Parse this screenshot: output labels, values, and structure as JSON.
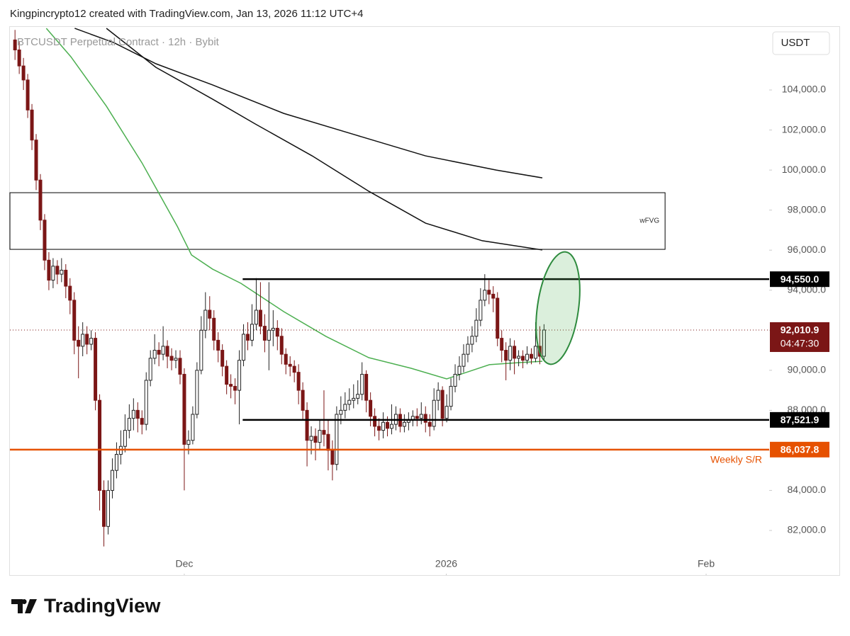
{
  "header": "Kingpincrypto12 created with TradingView.com, Jan 13, 2026 11:12 UTC+4",
  "footer": {
    "brand": "TradingView"
  },
  "chart_data": {
    "type": "candlestick",
    "title": "BTCUSDT Perpetual Contract · 12h · Bybit",
    "currency": "USDT",
    "up_color": "#ffffff",
    "down_color": "#7b1616",
    "wick_color": "#222222",
    "xlim": [
      -1.2,
      178.2
    ],
    "xticks": [
      {
        "value": 40.0,
        "label": "Dec"
      },
      {
        "value": 101.9,
        "label": "2026"
      },
      {
        "value": 163.3,
        "label": "Feb"
      }
    ],
    "ylim": [
      79770,
      107150
    ],
    "yticks": [
      {
        "value": 82000,
        "label": "82,000.0"
      },
      {
        "value": 84000,
        "label": "84,000.0"
      },
      {
        "value": 86000,
        "label": "86,000.0"
      },
      {
        "value": 88000,
        "label": "88,000.0"
      },
      {
        "value": 90000,
        "label": "90,000.0"
      },
      {
        "value": 92000,
        "label": "92,000.0"
      },
      {
        "value": 94000,
        "label": "94,000.0"
      },
      {
        "value": 96000,
        "label": "96,000.0"
      },
      {
        "value": 98000,
        "label": "98,000.0"
      },
      {
        "value": 100000,
        "label": "100,000.0"
      },
      {
        "value": 102000,
        "label": "102,000.0"
      },
      {
        "value": 104000,
        "label": "104,000.0"
      }
    ],
    "open": [
      106500,
      106000,
      105200,
      104500,
      103000,
      101500,
      99500,
      97500,
      95500,
      94500,
      95200,
      94800,
      95000,
      94200,
      93500,
      91500,
      91200,
      91800,
      91300,
      91600,
      88500,
      84000,
      82200,
      84000,
      85000,
      85800,
      86200,
      87000,
      87600,
      88000,
      87600,
      87300,
      89500,
      90600,
      91000,
      90800,
      91200,
      90700,
      90500,
      90600,
      89800,
      86300,
      86500,
      87800,
      90000,
      92000,
      93000,
      92600,
      91500,
      91000,
      90200,
      89300,
      89200,
      89000,
      90500,
      91800,
      91500,
      92300,
      93000,
      92200,
      91500,
      92000,
      92100,
      91700,
      90800,
      90300,
      90200,
      89900,
      89000,
      88000,
      86500,
      86700,
      86400,
      87000,
      86800,
      86000,
      85300,
      87800,
      88000,
      88300,
      88500,
      88600,
      88800,
      89800,
      88500,
      87700,
      87200,
      87000,
      87400,
      87100,
      87300,
      87800,
      87200,
      87400,
      87500,
      87700,
      87600,
      87800,
      87400,
      87200,
      88500,
      89000,
      87600,
      88200,
      89200,
      89800,
      90200,
      90800,
      91300,
      91700,
      92500,
      93500,
      94000,
      93800,
      93600,
      91600,
      91000,
      90500,
      91200,
      90600,
      90700,
      90500,
      90800,
      90600,
      91200,
      90700
    ],
    "high": [
      107000,
      106400,
      105600,
      104800,
      103300,
      101800,
      99800,
      97800,
      95900,
      95600,
      95500,
      95600,
      95300,
      94600,
      93900,
      92200,
      92400,
      92200,
      92000,
      91900,
      88800,
      84500,
      84500,
      85600,
      86400,
      87000,
      87800,
      88300,
      88600,
      88400,
      88000,
      89900,
      91000,
      91800,
      91400,
      92200,
      91500,
      91100,
      91000,
      91000,
      90100,
      87000,
      88200,
      90400,
      92700,
      93900,
      93700,
      93000,
      91900,
      91300,
      90500,
      89800,
      89600,
      91000,
      92300,
      92400,
      93300,
      94600,
      94400,
      92800,
      94400,
      93000,
      92500,
      92100,
      91100,
      90700,
      90500,
      90300,
      89400,
      88400,
      87200,
      87100,
      87500,
      89000,
      87500,
      86500,
      88200,
      88700,
      88900,
      89100,
      89300,
      89500,
      90400,
      90000,
      88900,
      88100,
      87600,
      87900,
      87700,
      88300,
      88200,
      88100,
      87800,
      87900,
      88000,
      88100,
      88400,
      88200,
      87800,
      89100,
      89400,
      89200,
      88800,
      89600,
      90300,
      90700,
      91300,
      91700,
      92200,
      93100,
      94100,
      94800,
      94500,
      94200,
      93900,
      92000,
      91400,
      91600,
      91500,
      91000,
      91000,
      91200,
      91100,
      92400,
      92200,
      92300
    ],
    "low": [
      105500,
      104800,
      104000,
      102600,
      101000,
      99000,
      97000,
      95000,
      94000,
      94100,
      94300,
      94400,
      93600,
      92800,
      90800,
      89600,
      90700,
      90800,
      91000,
      88000,
      83000,
      81200,
      81800,
      83600,
      84600,
      85300,
      85900,
      86600,
      87000,
      86900,
      86800,
      87000,
      89200,
      90300,
      90200,
      90500,
      90100,
      90000,
      90100,
      89300,
      84000,
      85800,
      86300,
      87600,
      89800,
      91600,
      92000,
      91000,
      90400,
      89700,
      88800,
      88600,
      88300,
      87300,
      90200,
      91000,
      91200,
      92000,
      91800,
      90900,
      90000,
      91200,
      91000,
      90300,
      89800,
      89700,
      89400,
      88300,
      87500,
      85200,
      85800,
      85500,
      86000,
      86200,
      85000,
      84500,
      85000,
      87300,
      87600,
      88000,
      88100,
      88300,
      88500,
      87900,
      87200,
      86700,
      86500,
      86600,
      86700,
      86800,
      87000,
      86900,
      86900,
      87000,
      87200,
      87200,
      87300,
      86900,
      86700,
      87000,
      88000,
      87200,
      87400,
      88000,
      88900,
      89500,
      89900,
      90400,
      90900,
      91400,
      92200,
      93200,
      93300,
      92900,
      91200,
      90400,
      89500,
      90000,
      89800,
      90200,
      90100,
      90300,
      90300,
      90400,
      90300,
      90500
    ],
    "close": [
      106000,
      105200,
      104500,
      103000,
      101500,
      99500,
      97500,
      95500,
      94500,
      95200,
      94800,
      95000,
      94200,
      93500,
      91500,
      91200,
      91800,
      91300,
      91600,
      88500,
      84000,
      82200,
      84000,
      85000,
      85800,
      86200,
      87000,
      87600,
      88000,
      87600,
      87300,
      89500,
      90600,
      91000,
      90800,
      91200,
      90700,
      90500,
      90600,
      89800,
      86300,
      86500,
      87800,
      90000,
      92000,
      93000,
      92600,
      91500,
      91000,
      90200,
      89300,
      89200,
      89000,
      90500,
      91800,
      91500,
      92300,
      93000,
      92200,
      91500,
      92000,
      92100,
      91700,
      90800,
      90300,
      90200,
      89900,
      89000,
      88000,
      86500,
      86700,
      86400,
      87000,
      86800,
      86000,
      85300,
      87800,
      88000,
      88300,
      88500,
      88600,
      88800,
      89800,
      88500,
      87700,
      87200,
      87000,
      87400,
      87100,
      87300,
      87800,
      87200,
      87400,
      87500,
      87700,
      87600,
      87800,
      87400,
      87200,
      88500,
      89000,
      87600,
      88200,
      89200,
      89800,
      90200,
      90800,
      91300,
      91700,
      92500,
      93500,
      94000,
      93800,
      93600,
      91600,
      91000,
      90500,
      91200,
      90600,
      90700,
      90500,
      90800,
      90600,
      91200,
      90700,
      92010.9
    ],
    "moving_averages": [
      {
        "color": "#4caf50",
        "x": [
          7.4,
          13.2,
          21.6,
          30.0,
          38.4,
          41.7,
          46.7,
          53.4,
          63.5,
          73.5,
          83.6,
          93.6,
          102.0,
          107.0,
          112.1,
          118.8,
          124.6
        ],
        "values": [
          107080,
          105660,
          103190,
          100360,
          97170,
          95760,
          95050,
          94340,
          92930,
          91690,
          90630,
          90100,
          89570,
          89920,
          90280,
          90380,
          90450
        ]
      },
      {
        "color": "#111111",
        "x": [
          21.6,
          33.3,
          46.7,
          56.8,
          70.2,
          83.6,
          97.0,
          110.4,
          124.6
        ],
        "values": [
          107080,
          105130,
          103540,
          102300,
          100710,
          98940,
          97350,
          96470,
          96010
        ]
      },
      {
        "color": "#111111",
        "x": [
          14.1,
          23.3,
          33.3,
          46.7,
          63.5,
          80.2,
          97.0,
          113.7,
          124.6
        ],
        "values": [
          107080,
          106370,
          105310,
          104250,
          102830,
          101770,
          100710,
          100000,
          99610
        ]
      }
    ],
    "zones": [
      {
        "label": "wFVG",
        "top": 98870,
        "bottom": 96040,
        "start": -1.2,
        "end": 153.6
      }
    ],
    "levels": [
      {
        "value": 94550,
        "label": "94,550.0",
        "color": "#000000",
        "start": 53.8
      },
      {
        "value": 87521.9,
        "label": "87,521.9",
        "color": "#000000",
        "start": 53.8
      },
      {
        "value": 86037.8,
        "label": "86,037.8",
        "color": "#e65100",
        "start": -1.2,
        "note": "Weekly S/R"
      }
    ],
    "last_price": {
      "value": 92010.9,
      "label": "92,010.9",
      "countdown": "04:47:30",
      "color": "#7b1616"
    }
  }
}
